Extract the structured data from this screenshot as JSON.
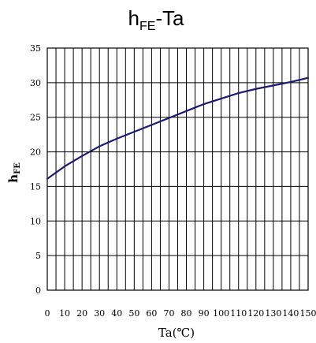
{
  "chart_data": {
    "type": "line",
    "title": {
      "main": "h",
      "subscript": "FE",
      "suffix": "-Ta"
    },
    "xlabel": "Ta(℃)",
    "ylabel": {
      "main": "h",
      "subscript": "FE"
    },
    "xlim": [
      0,
      150
    ],
    "ylim": [
      0,
      35
    ],
    "x_ticks": [
      "0",
      "10",
      "20",
      "30",
      "40",
      "50",
      "60",
      "70",
      "80",
      "90",
      "100",
      "110",
      "120",
      "130",
      "140",
      "150"
    ],
    "y_ticks": [
      "0",
      "5",
      "10",
      "15",
      "20",
      "25",
      "30",
      "35"
    ],
    "grid": true,
    "line_color": "#1a1a6e",
    "series": [
      {
        "x": [
          0,
          10,
          20,
          30,
          40,
          50,
          60,
          70,
          80,
          90,
          100,
          110,
          120,
          130,
          140,
          150
        ],
        "y": [
          16.1,
          17.9,
          19.4,
          20.8,
          21.9,
          22.9,
          23.9,
          24.9,
          25.9,
          26.9,
          27.7,
          28.5,
          29.1,
          29.6,
          30.1,
          30.7
        ]
      }
    ]
  }
}
